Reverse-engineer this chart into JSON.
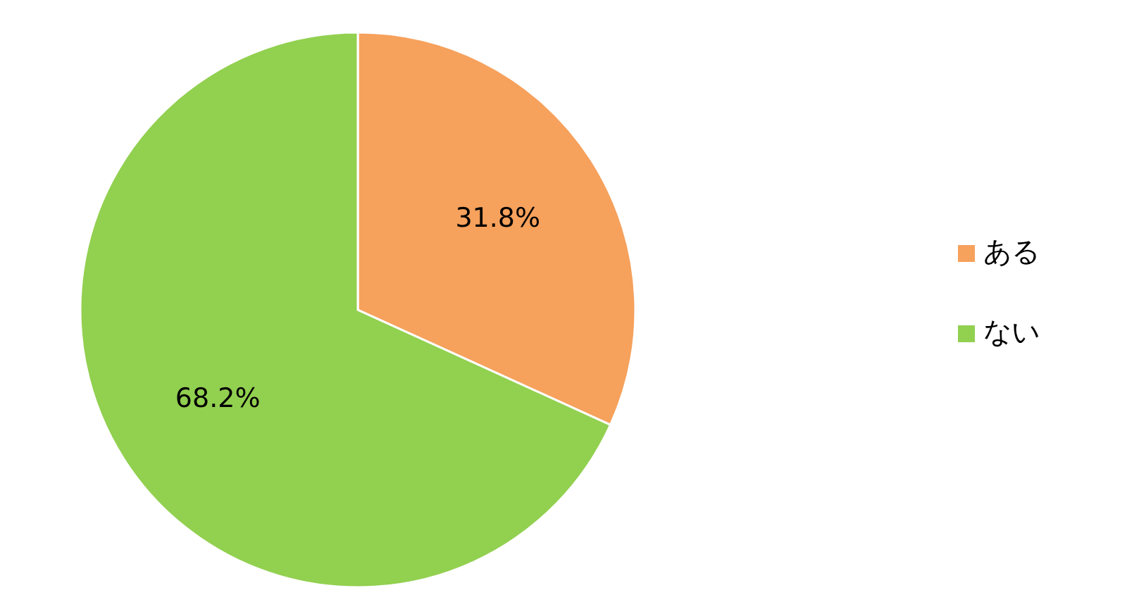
{
  "chart_data": {
    "type": "pie",
    "categories": [
      "ある",
      "ない"
    ],
    "values": [
      31.8,
      68.2
    ],
    "colors": [
      "#f6a15c",
      "#92d050"
    ],
    "value_labels": [
      "31.8%",
      "68.2%"
    ],
    "legend": "right"
  }
}
